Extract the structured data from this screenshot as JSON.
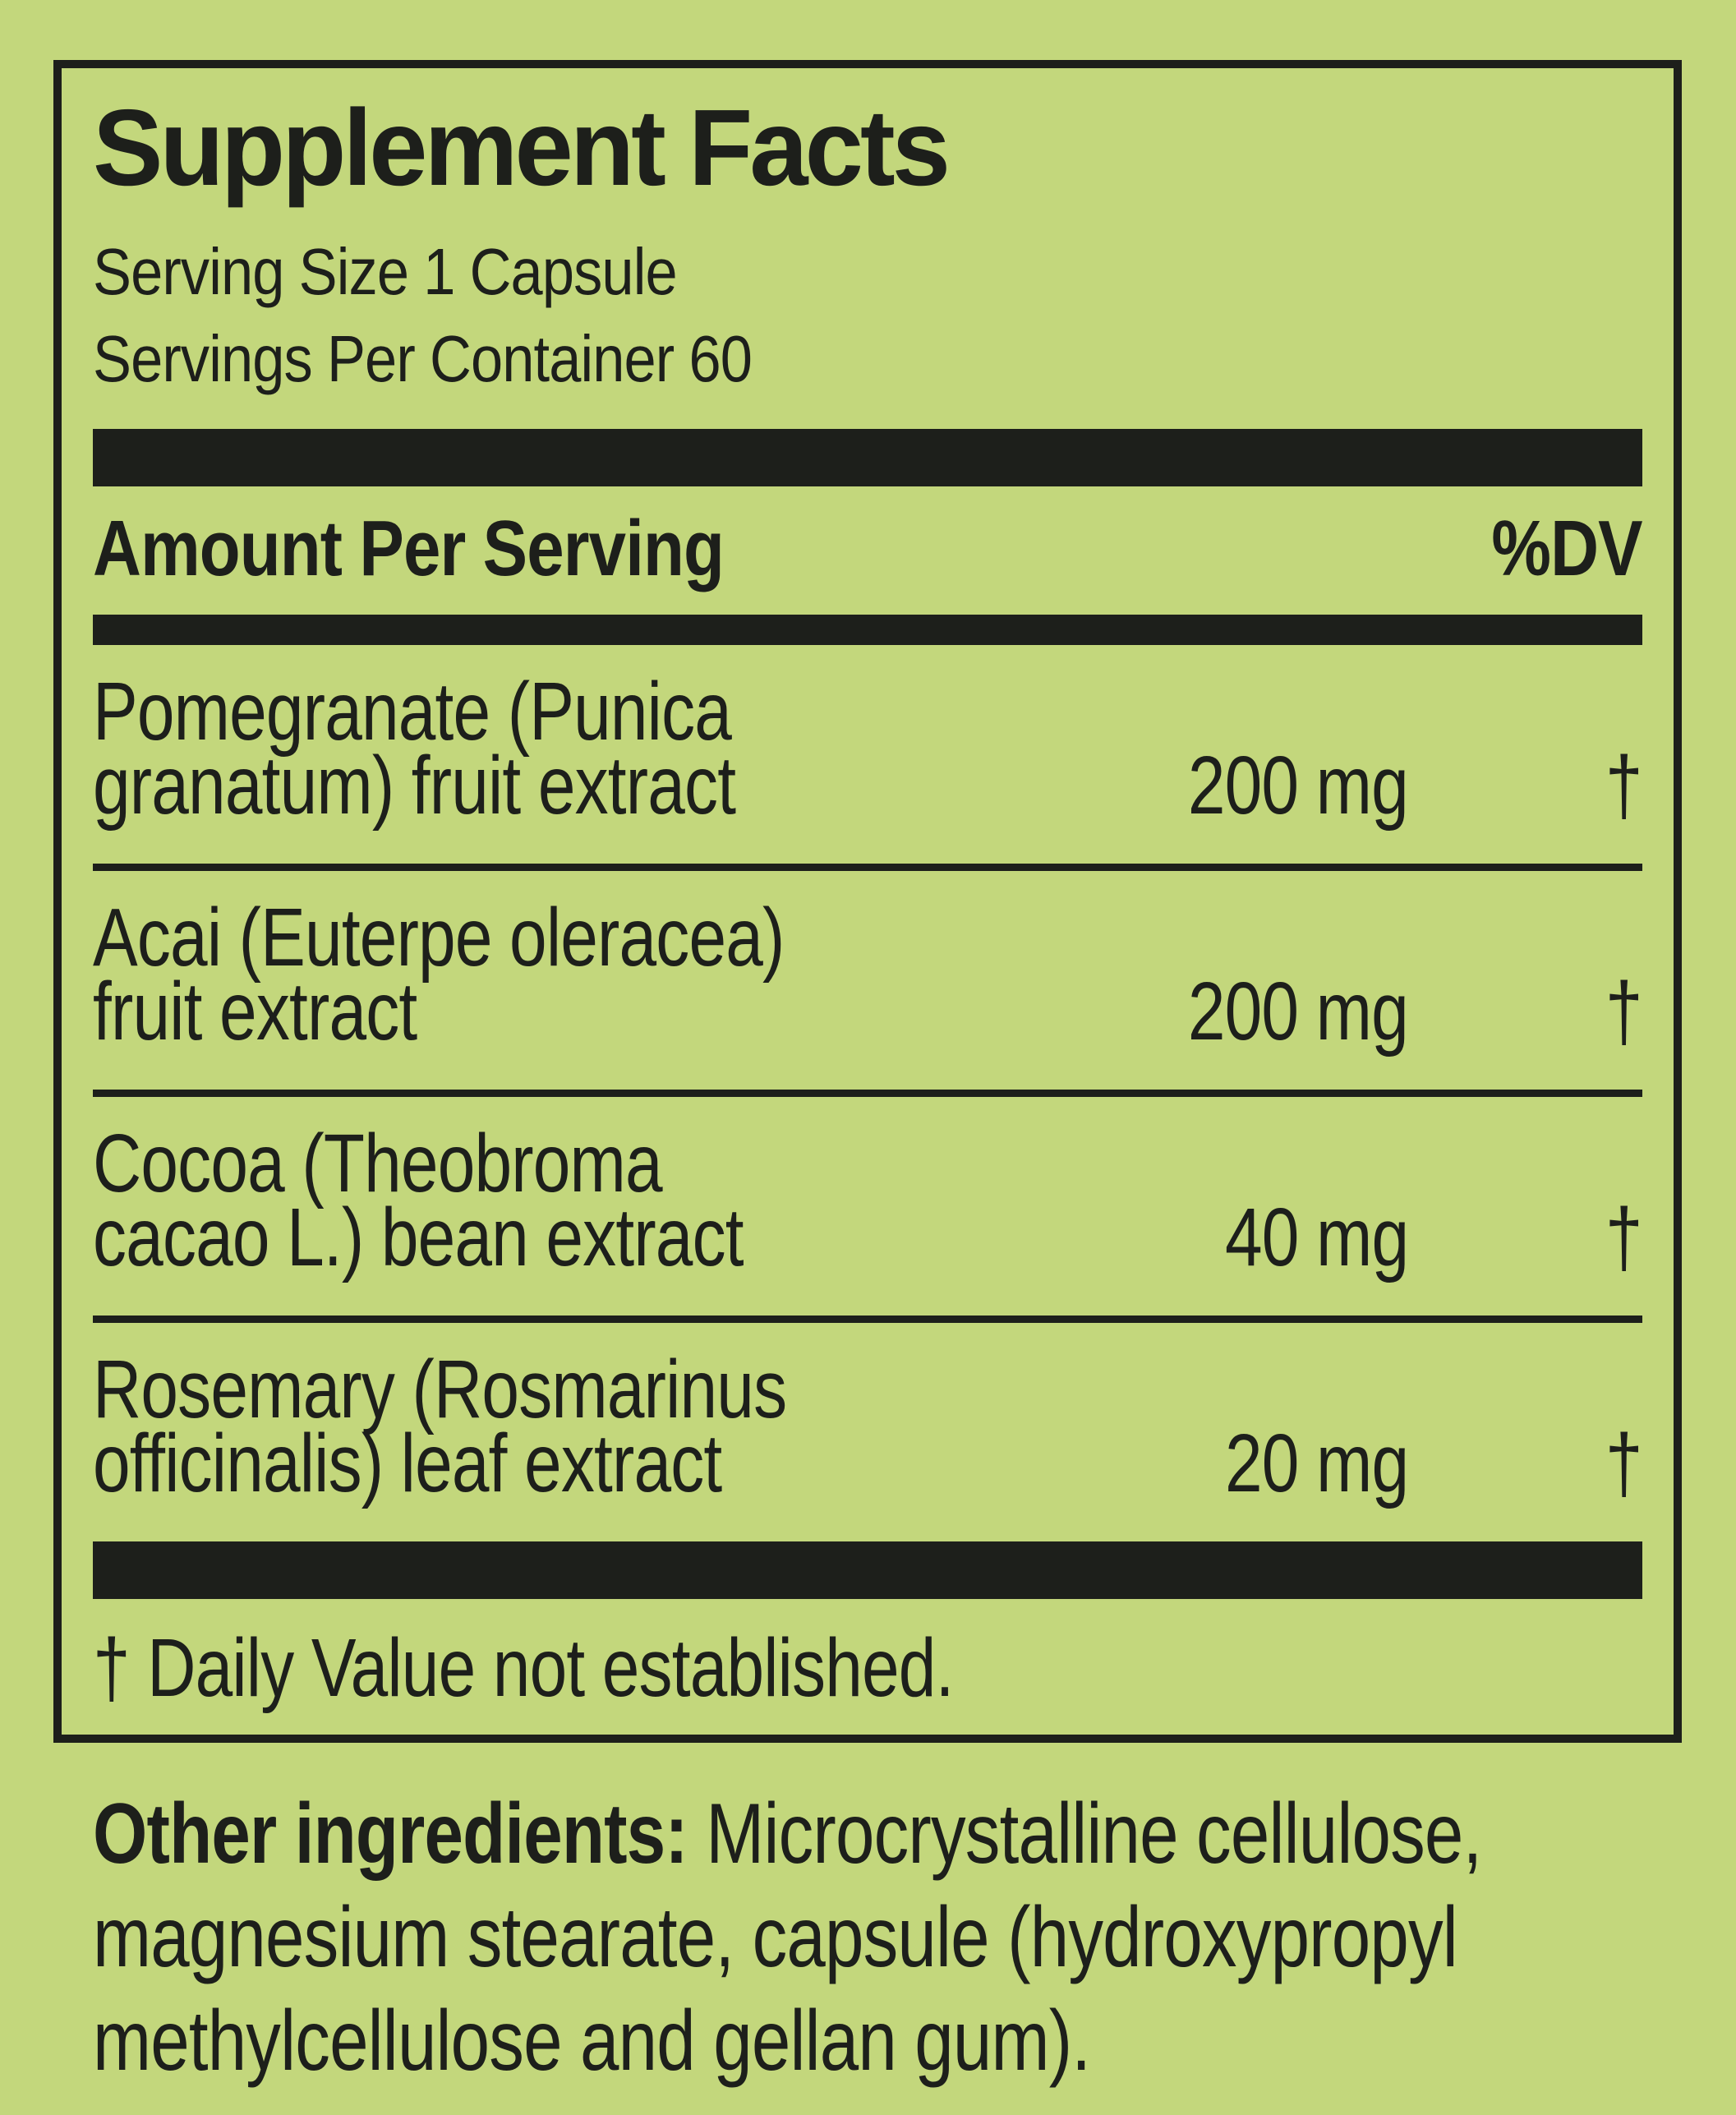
{
  "colors": {
    "background": "#c3d77c",
    "ink": "#1d1f1b"
  },
  "panel": {
    "title": "Supplement Facts",
    "serving_size": "Serving Size 1 Capsule",
    "servings_per_container": "Servings Per Container 60",
    "columns": {
      "amount_header": "Amount Per Serving",
      "dv_header": "%DV"
    },
    "rows": [
      {
        "name_line1": "Pomegranate (Punica",
        "name_line2": "granatum) fruit extract",
        "amount": "200 mg",
        "dv": "†"
      },
      {
        "name_line1": "Acai (Euterpe oleracea)",
        "name_line2": "fruit extract",
        "amount": "200 mg",
        "dv": "†"
      },
      {
        "name_line1": "Cocoa (Theobroma",
        "name_line2": "cacao L.) bean extract",
        "amount": "40 mg",
        "dv": "†"
      },
      {
        "name_line1": "Rosemary (Rosmarinus",
        "name_line2": "officinalis) leaf extract",
        "amount": "20 mg",
        "dv": "†"
      }
    ],
    "footnote": "† Daily Value not established."
  },
  "other_ingredients": {
    "label": "Other ingredients:",
    "line1_rest": " Microcrystalline cellulose,",
    "line2": "magnesium stearate, capsule (hydroxypropyl",
    "line3": "methylcellulose and gellan gum)."
  }
}
